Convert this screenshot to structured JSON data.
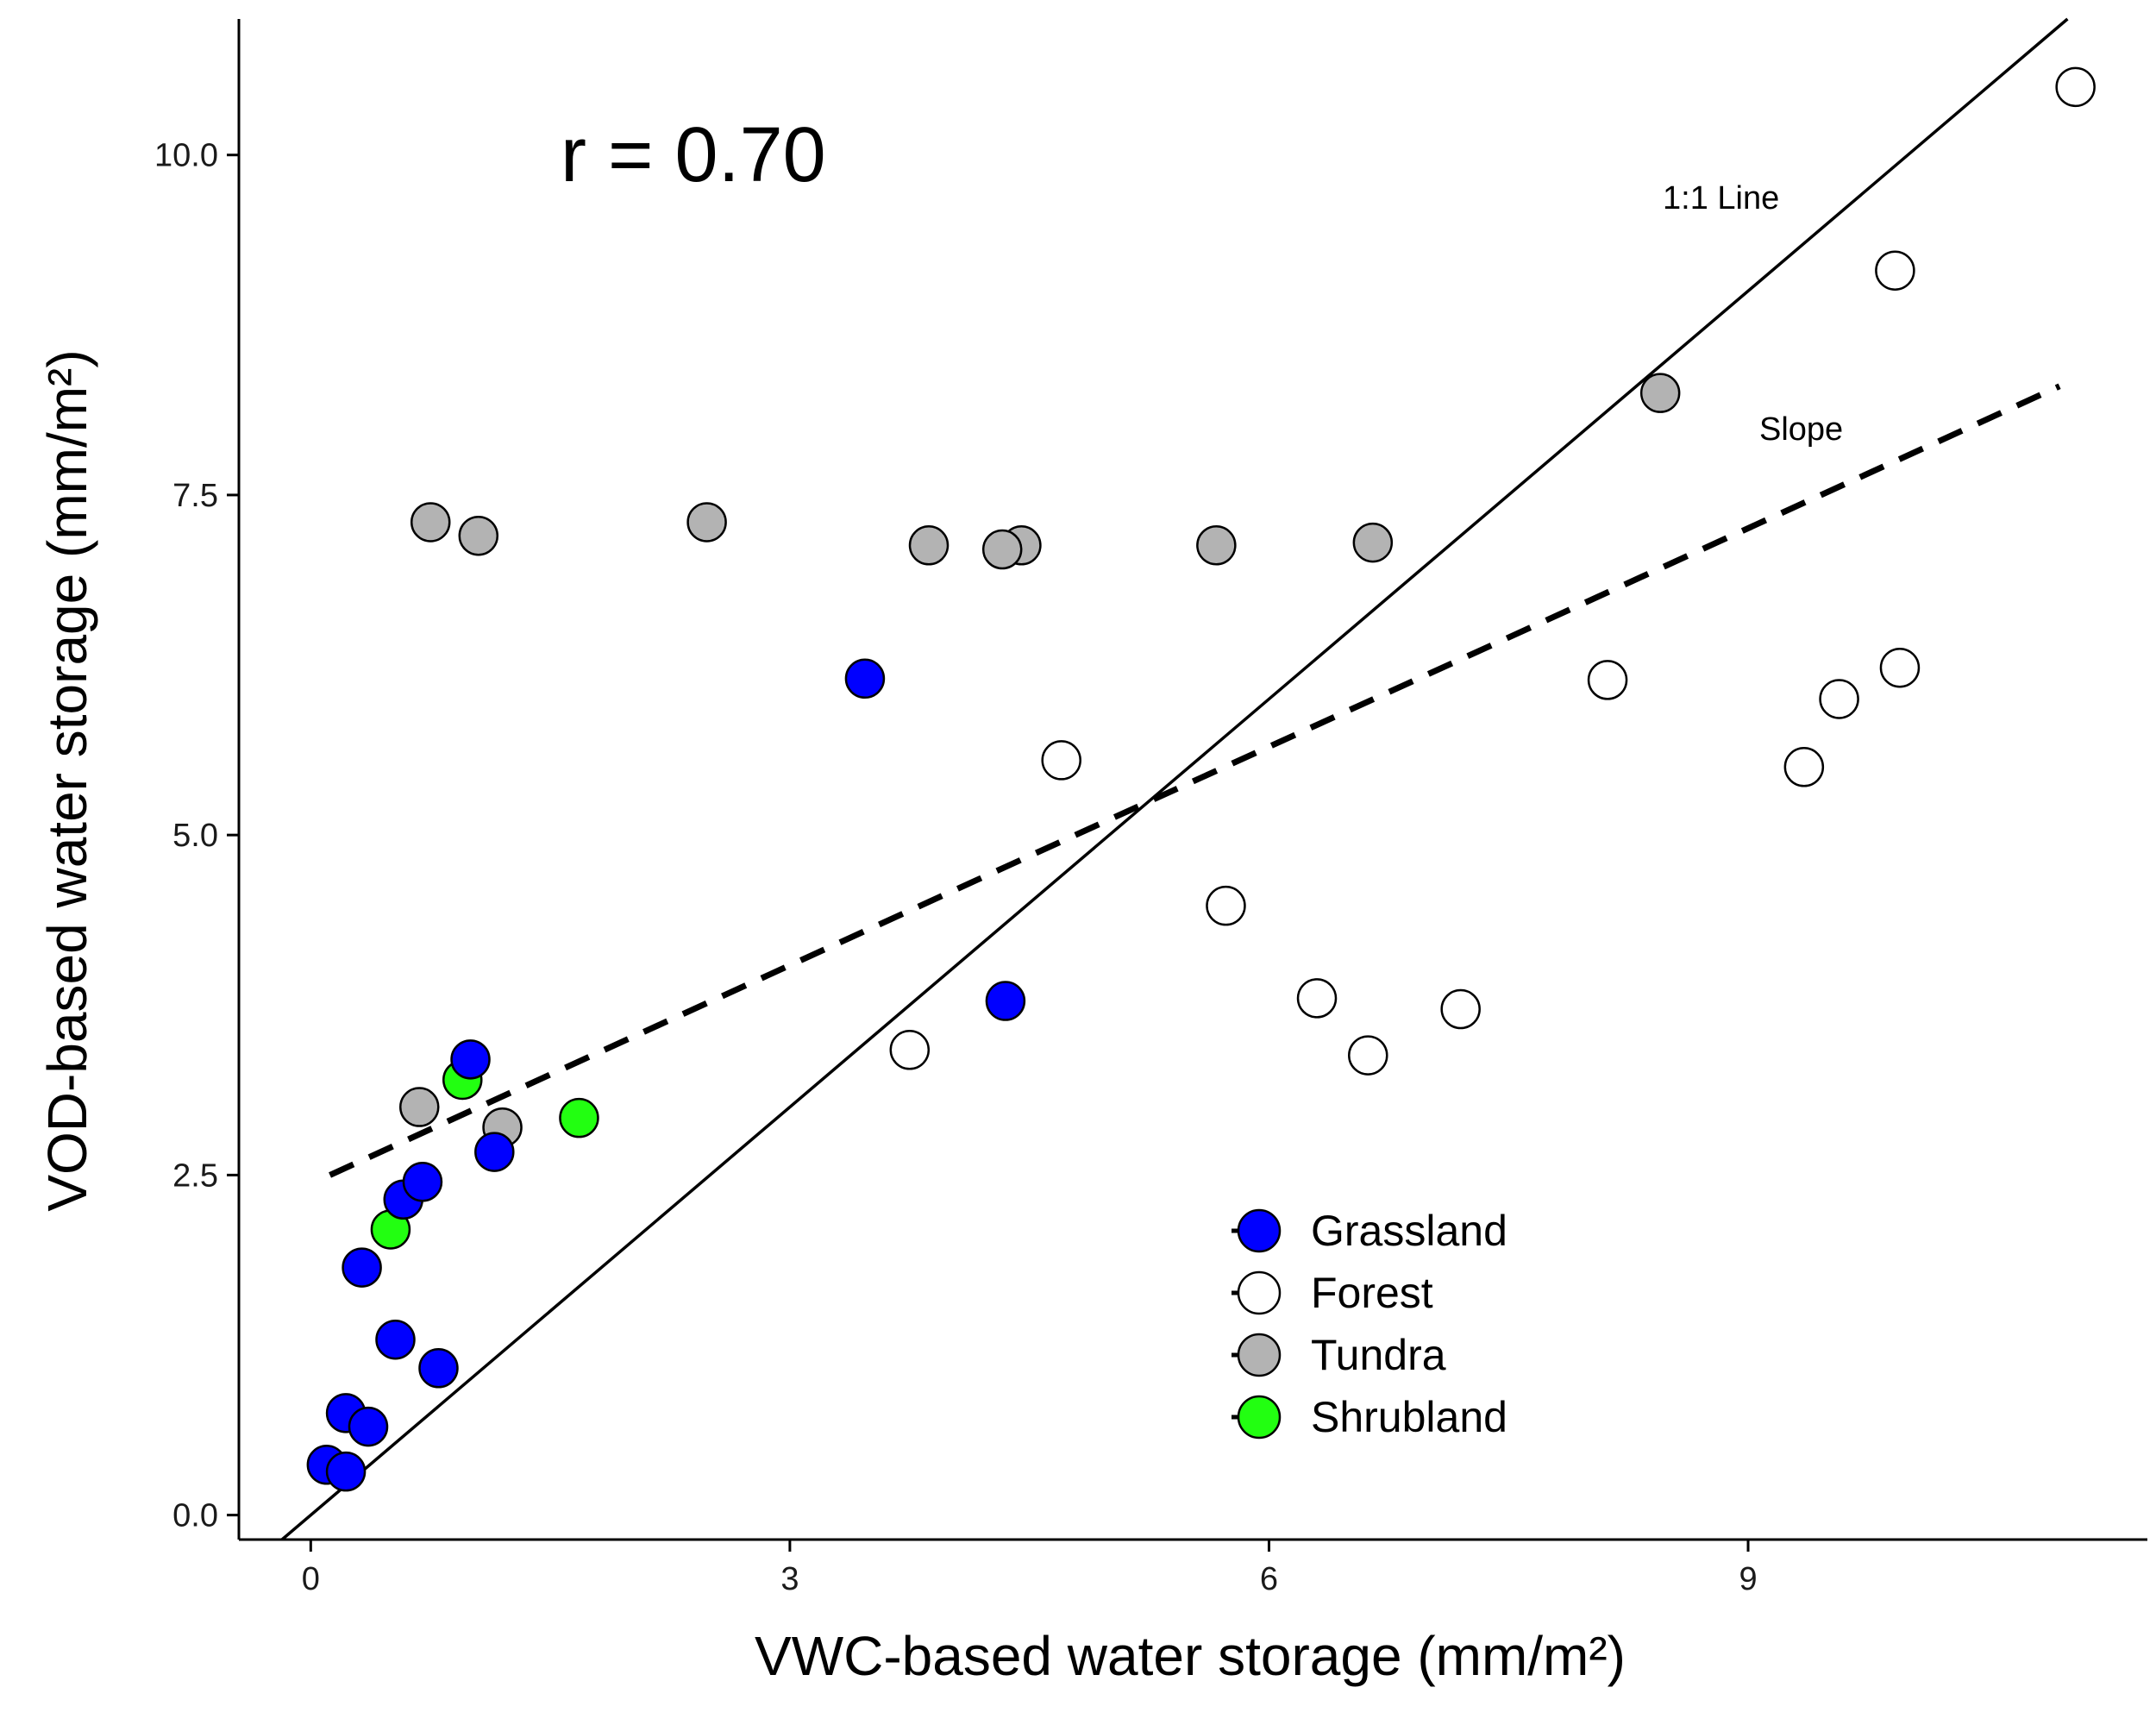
{
  "chart_data": {
    "type": "scatter",
    "title": "",
    "xlabel": "VWC-based water storage (mm/m²)",
    "ylabel": "VOD-based water storage (mm/m²)",
    "xlim": [
      -0.45,
      11.5
    ],
    "ylim": [
      -0.18,
      11.0
    ],
    "x_ticks": [
      0,
      3,
      6,
      9
    ],
    "x_tick_labels": [
      "0",
      "3",
      "6",
      "9"
    ],
    "y_ticks": [
      0,
      2.5,
      5,
      7.5,
      10
    ],
    "y_tick_labels": [
      "0.0",
      "2.5",
      "5.0",
      "7.5",
      "10.0"
    ],
    "grid": false,
    "legend_position": "bottom-right",
    "annotations": {
      "r_text": "r = 0.70",
      "one_to_one_label": "1:1 Line",
      "slope_label": "Slope"
    },
    "reference_lines": {
      "one_to_one": {
        "intercept": 0,
        "slope": 1
      },
      "fit": {
        "x": [
          0.12,
          10.95
        ],
        "y": [
          2.5,
          8.3
        ]
      }
    },
    "series": [
      {
        "name": "Grassland",
        "color": "#0000ff",
        "points": [
          [
            0.1,
            0.37
          ],
          [
            0.22,
            0.32
          ],
          [
            0.22,
            0.75
          ],
          [
            0.36,
            0.65
          ],
          [
            0.32,
            1.82
          ],
          [
            0.53,
            1.29
          ],
          [
            0.8,
            1.08
          ],
          [
            0.58,
            2.32
          ],
          [
            0.7,
            2.45
          ],
          [
            1.15,
            2.67
          ],
          [
            1.0,
            3.35
          ],
          [
            3.47,
            6.15
          ],
          [
            4.35,
            3.78
          ]
        ]
      },
      {
        "name": "Forest",
        "color": "#ffffff",
        "points": [
          [
            3.75,
            3.42
          ],
          [
            4.7,
            5.55
          ],
          [
            5.73,
            4.48
          ],
          [
            6.3,
            3.8
          ],
          [
            6.62,
            3.38
          ],
          [
            7.2,
            3.72
          ],
          [
            8.12,
            6.14
          ],
          [
            9.35,
            5.5
          ],
          [
            9.57,
            6.0
          ],
          [
            9.95,
            6.23
          ],
          [
            9.92,
            9.15
          ],
          [
            11.05,
            10.5
          ]
        ]
      },
      {
        "name": "Tundra",
        "color": "#b3b3b3",
        "points": [
          [
            0.75,
            7.3
          ],
          [
            1.05,
            7.2
          ],
          [
            2.48,
            7.3
          ],
          [
            3.87,
            7.13
          ],
          [
            4.45,
            7.13
          ],
          [
            4.33,
            7.1
          ],
          [
            5.67,
            7.13
          ],
          [
            6.65,
            7.15
          ],
          [
            8.45,
            8.25
          ],
          [
            0.68,
            3.0
          ],
          [
            1.2,
            2.85
          ]
        ]
      },
      {
        "name": "Shrubland",
        "color": "#22ff11",
        "points": [
          [
            0.5,
            2.1
          ],
          [
            0.95,
            3.2
          ],
          [
            1.68,
            2.92
          ]
        ]
      }
    ]
  }
}
